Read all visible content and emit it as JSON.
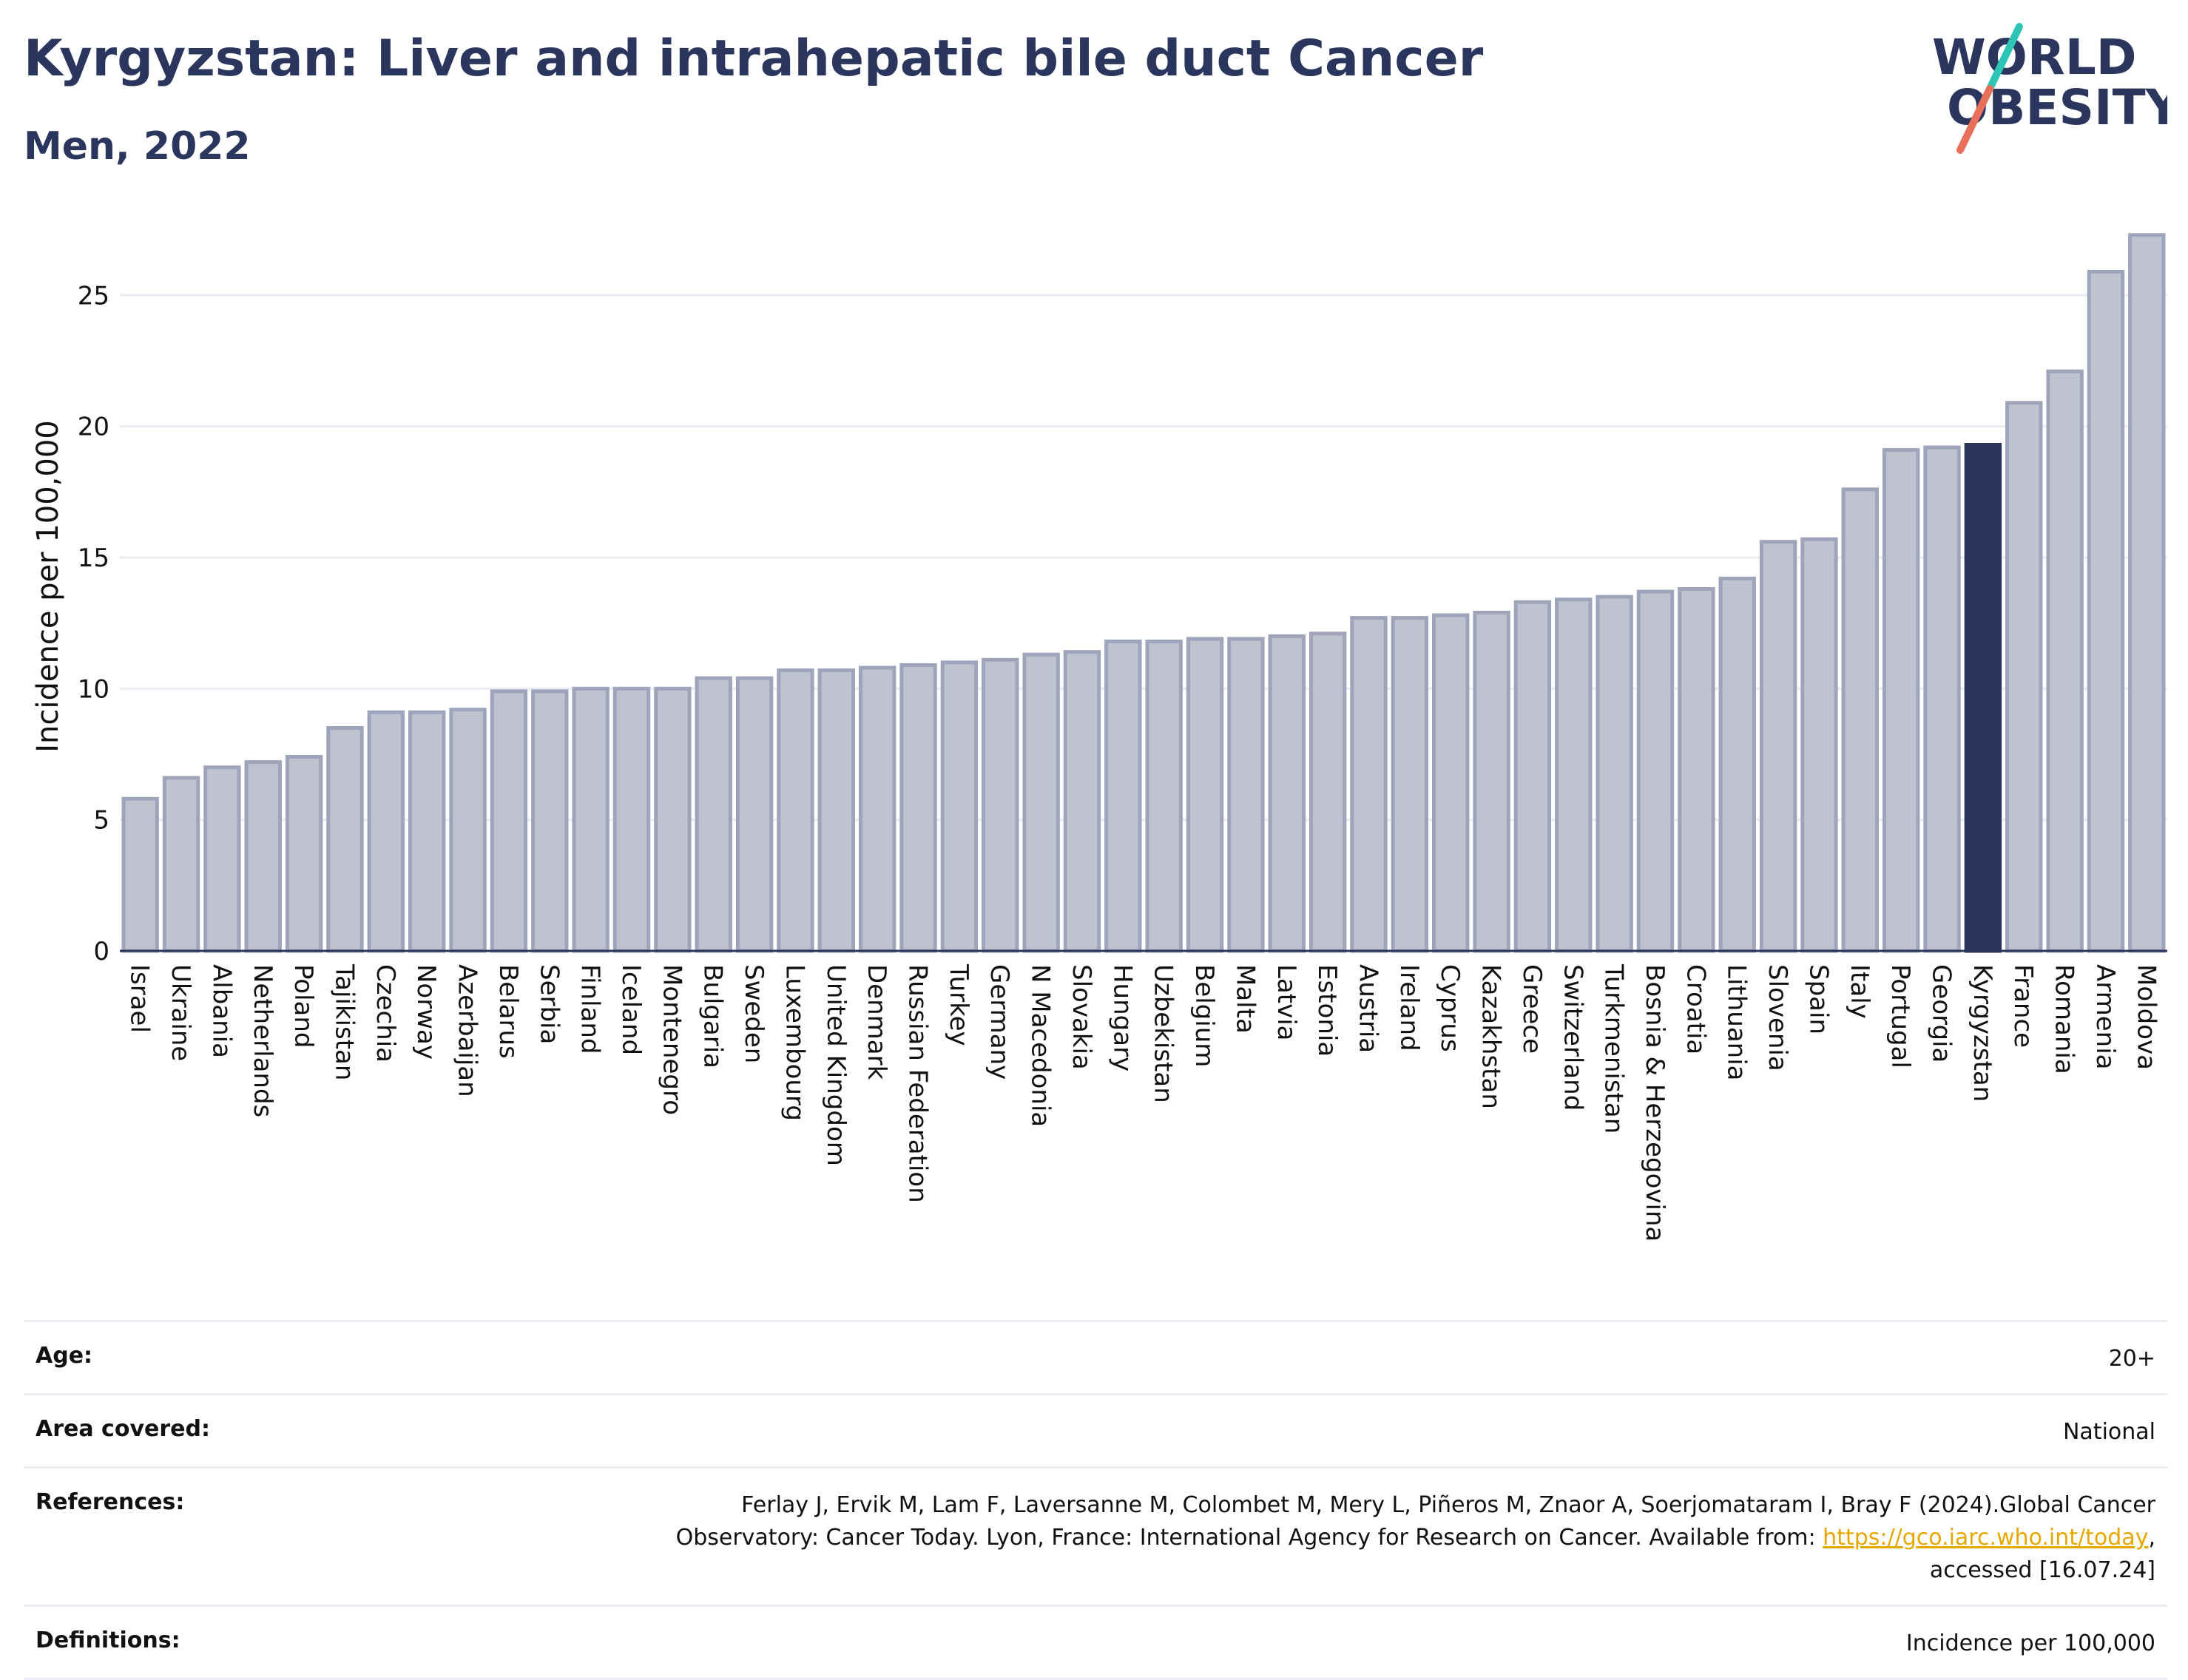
{
  "header": {
    "title": "Kyrgyzstan: Liver and intrahepatic bile duct Cancer",
    "subtitle": "Men, 2022"
  },
  "logo": {
    "line1": "WORLD",
    "line2": "OBESITY",
    "colors": {
      "text": "#2b365f",
      "slash_top": "#2ec4b6",
      "slash_bottom": "#e8705a"
    }
  },
  "chart_data": {
    "type": "bar",
    "ylabel": "Incidence per 100,000",
    "ylim": [
      0,
      27.8
    ],
    "yticks": [
      0,
      5,
      10,
      15,
      20,
      25
    ],
    "grid": true,
    "highlight": "Kyrgyzstan",
    "colors": {
      "bar": "#bfc3d0",
      "bar_edge": "#9ea4b9",
      "highlight": "#2b365f",
      "grid": "#e9ecf2",
      "axis": "#2b365f"
    },
    "categories": [
      "Israel",
      "Ukraine",
      "Albania",
      "Netherlands",
      "Poland",
      "Tajikistan",
      "Czechia",
      "Norway",
      "Azerbaijan",
      "Belarus",
      "Serbia",
      "Finland",
      "Iceland",
      "Montenegro",
      "Bulgaria",
      "Sweden",
      "Luxembourg",
      "United Kingdom",
      "Denmark",
      "Russian Federation",
      "Turkey",
      "Germany",
      "N Macedonia",
      "Slovakia",
      "Hungary",
      "Uzbekistan",
      "Belgium",
      "Malta",
      "Latvia",
      "Estonia",
      "Austria",
      "Ireland",
      "Cyprus",
      "Kazakhstan",
      "Greece",
      "Switzerland",
      "Turkmenistan",
      "Bosnia & Herzegovina",
      "Croatia",
      "Lithuania",
      "Slovenia",
      "Spain",
      "Italy",
      "Portugal",
      "Georgia",
      "Kyrgyzstan",
      "France",
      "Romania",
      "Armenia",
      "Moldova"
    ],
    "values": [
      5.8,
      6.6,
      7.0,
      7.2,
      7.4,
      8.5,
      9.1,
      9.1,
      9.2,
      9.9,
      9.9,
      10.0,
      10.0,
      10.0,
      10.4,
      10.4,
      10.7,
      10.7,
      10.8,
      10.9,
      11.0,
      11.1,
      11.3,
      11.4,
      11.8,
      11.8,
      11.9,
      11.9,
      12.0,
      12.1,
      12.7,
      12.7,
      12.8,
      12.9,
      13.3,
      13.4,
      13.5,
      13.7,
      13.8,
      14.2,
      15.6,
      15.7,
      17.6,
      19.1,
      19.2,
      19.3,
      20.9,
      22.1,
      25.9,
      27.3
    ]
  },
  "info": {
    "age_label": "Age:",
    "age_value": "20+",
    "area_label": "Area covered:",
    "area_value": "National",
    "references_label": "References:",
    "references_text_1": "Ferlay J, Ervik M, Lam F, Laversanne M, Colombet M, Mery L, Piñeros M, Znaor A, Soerjomataram I, Bray F (2024).Global Cancer",
    "references_text_2": "Observatory: Cancer Today. Lyon, France: International Agency for Research on Cancer. Available from: ",
    "references_link": "https://gco.iarc.who.int/today",
    "references_text_3": ",",
    "references_text_4": "accessed [16.07.24]",
    "definitions_label": "Definitions:",
    "definitions_value": "Incidence per 100,000"
  }
}
